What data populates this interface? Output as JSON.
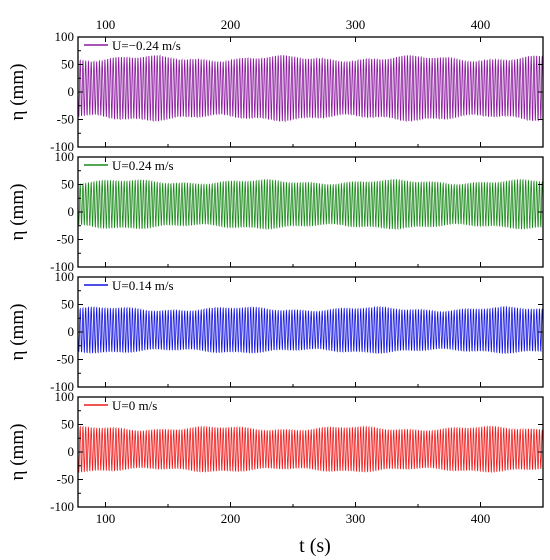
{
  "chart_data": {
    "type": "line",
    "xlabel": "t (s)",
    "ylabel": "η (mm)",
    "xlim": [
      78,
      450
    ],
    "ylim": [
      -100,
      100
    ],
    "x_ticks": [
      100,
      200,
      300,
      400
    ],
    "y_ticks": [
      -100,
      -50,
      0,
      50,
      100
    ],
    "top_axis_tick_labels": true,
    "grid": false,
    "panels": [
      {
        "legend": "U=−0.24 m/s",
        "color": "#8b1a9e",
        "signal": {
          "period_s": 2.2,
          "mean_mm": 8,
          "upper_mm": 62,
          "lower_mm": -48
        }
      },
      {
        "legend": "U=0.24 m/s",
        "color": "#1a8a1a",
        "signal": {
          "period_s": 2.2,
          "mean_mm": 15,
          "upper_mm": 55,
          "lower_mm": -27
        }
      },
      {
        "legend": "U=0.14 m/s",
        "color": "#1515e0",
        "signal": {
          "period_s": 2.2,
          "mean_mm": 3,
          "upper_mm": 42,
          "lower_mm": -35
        }
      },
      {
        "legend": "U=0 m/s",
        "color": "#ee1c1c",
        "signal": {
          "period_s": 2.2,
          "mean_mm": 5,
          "upper_mm": 43,
          "lower_mm": -33
        }
      }
    ]
  }
}
